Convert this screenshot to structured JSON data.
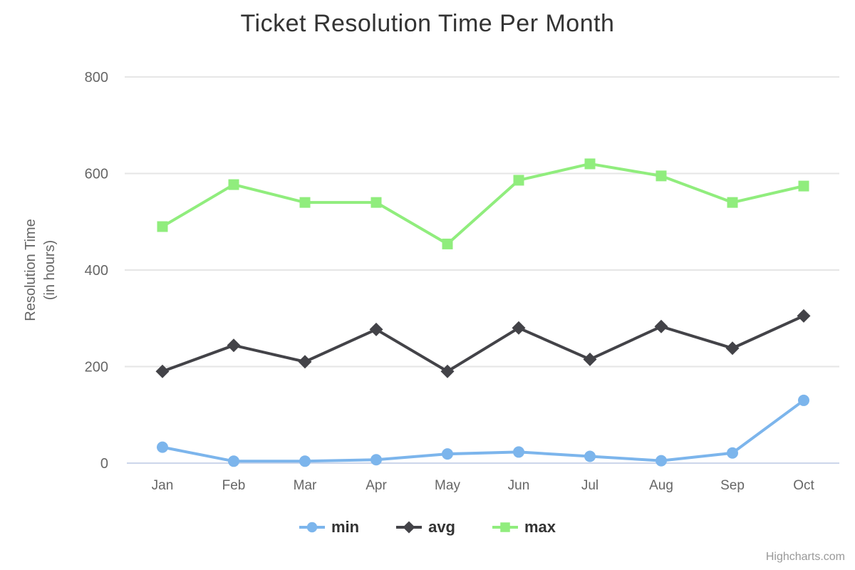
{
  "chart": {
    "title": "Ticket Resolution Time Per Month",
    "credit": "Highcharts.com"
  },
  "chart_data": {
    "type": "line",
    "title": "Ticket Resolution Time Per Month",
    "categories": [
      "Jan",
      "Feb",
      "Mar",
      "Apr",
      "May",
      "Jun",
      "Jul",
      "Aug",
      "Sep",
      "Oct"
    ],
    "series": [
      {
        "name": "min",
        "color": "#7cb5ec",
        "marker": "circle",
        "values": [
          33,
          4,
          4,
          7,
          19,
          23,
          14,
          5,
          21,
          130
        ]
      },
      {
        "name": "avg",
        "color": "#434348",
        "marker": "diamond",
        "values": [
          190,
          244,
          210,
          277,
          190,
          280,
          215,
          283,
          238,
          305
        ]
      },
      {
        "name": "max",
        "color": "#90ed7d",
        "marker": "square",
        "values": [
          490,
          577,
          540,
          540,
          454,
          586,
          620,
          595,
          540,
          574
        ]
      }
    ],
    "xlabel": "",
    "ylabel": "Resolution Time (in hours)",
    "ylabel_lines": [
      "Resolution Time",
      "(in hours)"
    ],
    "ylim": [
      0,
      800
    ],
    "yticks": [
      0,
      200,
      400,
      600,
      800
    ],
    "grid": true,
    "legend_position": "bottom"
  },
  "colors": {
    "grid_line": "#e6e6e6",
    "x_axis_line": "#ccd6eb",
    "axis_label": "#666666",
    "title_text": "#333333",
    "legend_text": "#333333",
    "credit_text": "#999999",
    "background": "#ffffff"
  }
}
